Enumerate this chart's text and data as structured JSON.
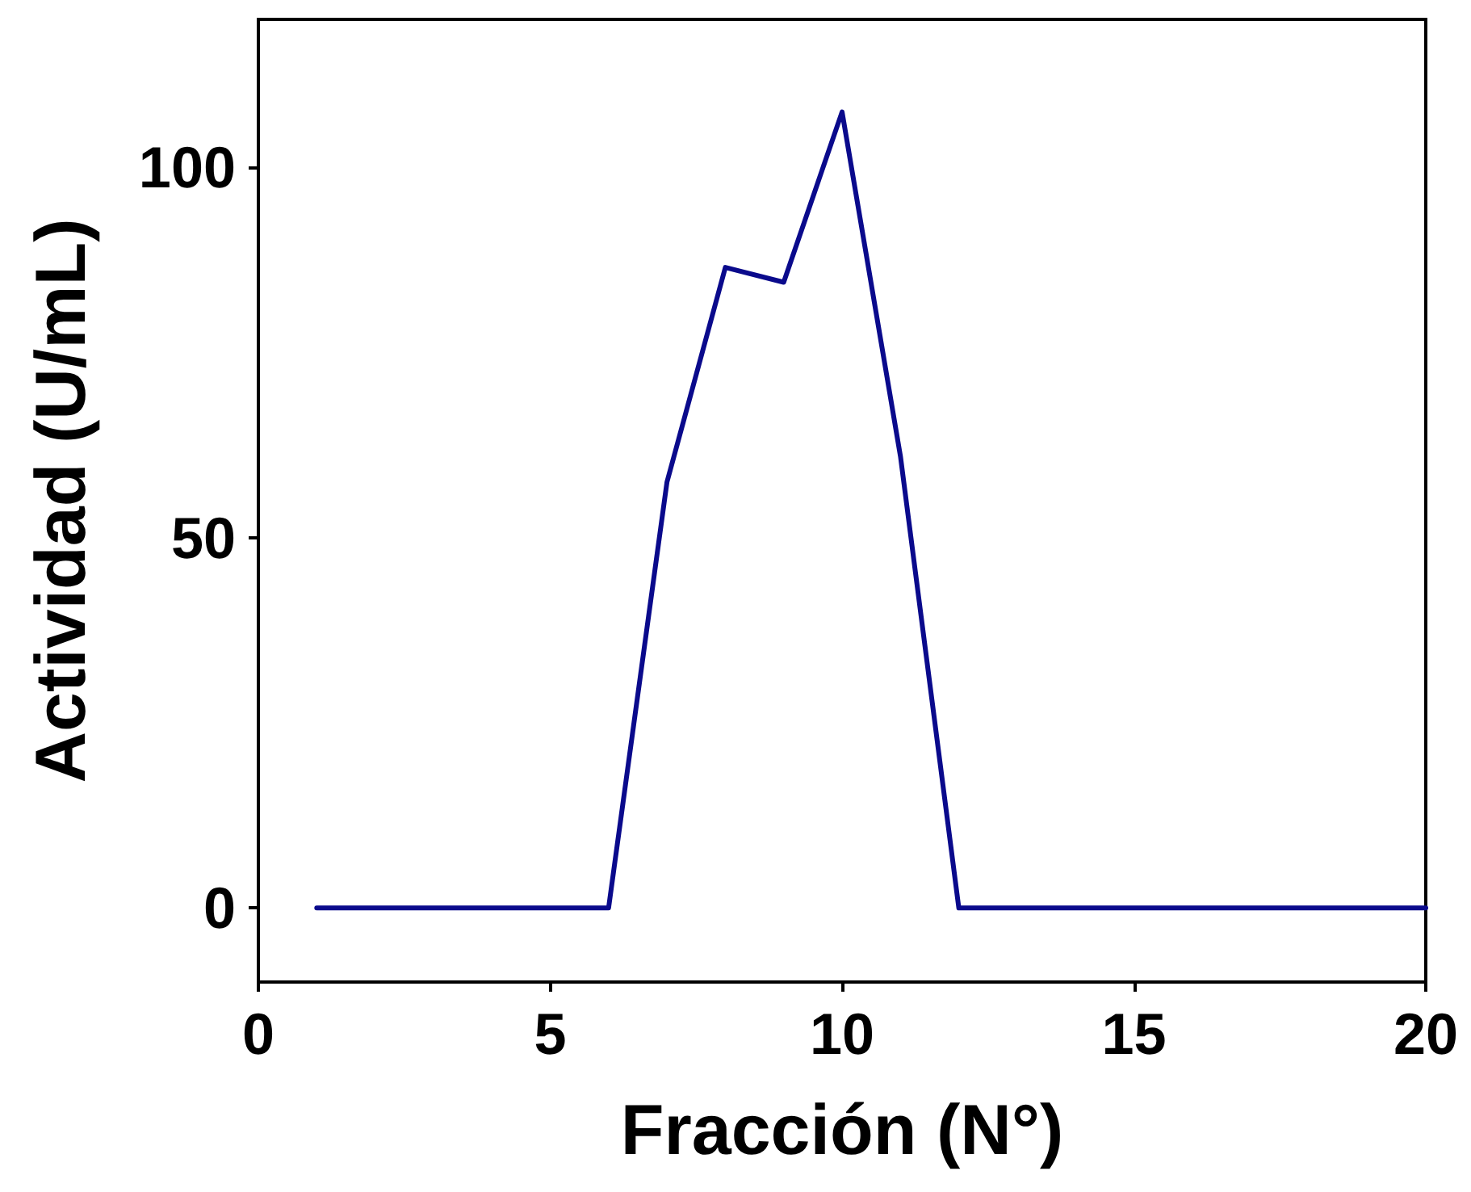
{
  "chart_data": {
    "type": "line",
    "xlabel": "Fracción (N°)",
    "ylabel": "Actividad (U/mL)",
    "x": [
      1,
      2,
      3,
      4,
      5,
      6,
      7,
      8,
      9,
      10,
      11,
      12,
      13,
      14,
      15,
      16,
      17,
      18,
      19,
      20
    ],
    "series": [
      {
        "color": "#0a0a8c",
        "values": [
          0,
          0,
          0,
          0,
          0,
          0,
          57.5,
          86.5,
          84.5,
          107.5,
          61,
          0,
          0,
          0,
          0,
          0,
          0,
          0,
          0,
          0
        ]
      }
    ],
    "xlim": [
      0,
      20
    ],
    "xticks": [
      0,
      5,
      10,
      15,
      20
    ],
    "ylim": [
      -10,
      120
    ],
    "yticks": [
      0,
      50,
      100
    ],
    "grid": false,
    "marker": "none",
    "line_style": "solid"
  }
}
